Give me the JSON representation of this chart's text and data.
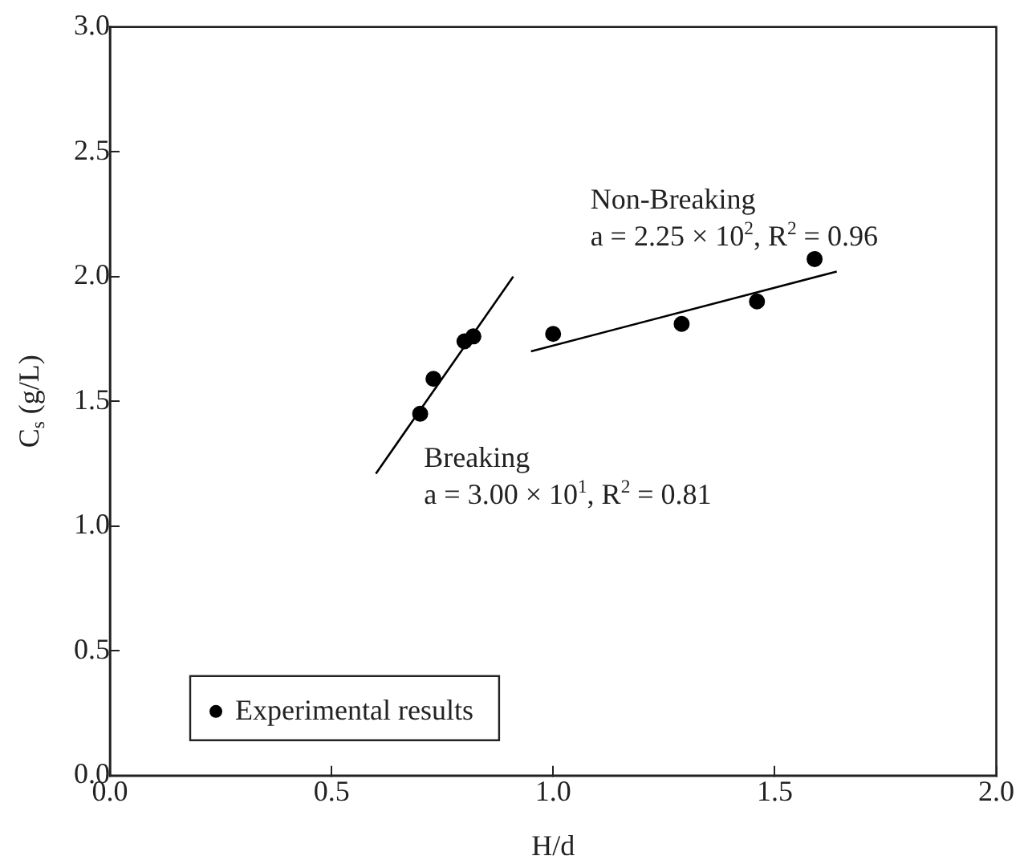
{
  "chart_data": {
    "type": "scatter",
    "xlabel": "H/d",
    "ylabel": "C$_{s}$ (g/L)",
    "xlim": [
      0,
      2
    ],
    "xticks": [
      {
        "value": 0,
        "label": "0.0"
      },
      0.5,
      {
        "value": 1,
        "label": "1.0"
      },
      1.5,
      {
        "value": 2,
        "label": "2.0"
      }
    ],
    "ylim": [
      0,
      3
    ],
    "yticks": [
      {
        "value": 0,
        "label": "0.0"
      },
      0.5,
      {
        "value": 1,
        "label": "1.0"
      },
      1.5,
      {
        "value": 2,
        "label": "2.0"
      },
      2.5,
      {
        "value": 3,
        "label": "3.0"
      }
    ],
    "grid": false,
    "legend": "bottom left",
    "series": [
      {
        "name": "Experimental results",
        "marker": "circle",
        "color": "#000000",
        "x": [
          0.7,
          0.73,
          0.8,
          0.82,
          1.0,
          1.29,
          1.46,
          1.59
        ],
        "values": [
          1.45,
          1.59,
          1.74,
          1.76,
          1.77,
          1.81,
          1.9,
          2.07
        ]
      },
      {
        "type": "line",
        "color": "#000000",
        "x": [
          0.6,
          0.91
        ],
        "values": [
          1.21,
          2.0
        ]
      },
      {
        "type": "line",
        "color": "#000000",
        "x": [
          0.95,
          1.64
        ],
        "values": [
          1.7,
          2.02
        ]
      }
    ],
    "annotations": [
      "Non-Breaking",
      "a = 2.25 × 10$^{2}$, R$^{2}$ = 0.96",
      "Breaking",
      "a = 3.00 × 10$^{1}$, R$^{2}$ = 0.81"
    ]
  }
}
